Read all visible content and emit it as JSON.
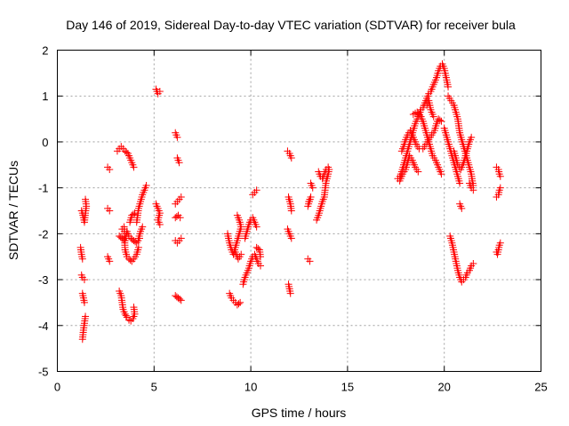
{
  "chart_data": {
    "type": "scatter",
    "title": "Day 146 of 2019, Sidereal Day-to-day VTEC variation (SDTVAR) for receiver bula",
    "xlabel": "GPS time / hours",
    "ylabel": "SDTVAR / TECUs",
    "xlim": [
      0,
      25
    ],
    "ylim": [
      -5,
      2
    ],
    "xticks": [
      0,
      5,
      10,
      15,
      20,
      25
    ],
    "yticks": [
      -5,
      -4,
      -3,
      -2,
      -1,
      0,
      1,
      2
    ],
    "grid": true,
    "marker": "+",
    "color": "#ff0000",
    "segments": [
      [
        [
          1.3,
          -4.3
        ],
        [
          1.35,
          -4.1
        ],
        [
          1.4,
          -3.95
        ],
        [
          1.45,
          -3.8
        ]
      ],
      [
        [
          1.3,
          -3.3
        ],
        [
          1.35,
          -3.4
        ],
        [
          1.4,
          -3.5
        ]
      ],
      [
        [
          1.25,
          -2.9
        ],
        [
          1.3,
          -2.95
        ],
        [
          1.4,
          -3.0
        ]
      ],
      [
        [
          1.2,
          -2.3
        ],
        [
          1.25,
          -2.45
        ],
        [
          1.3,
          -2.55
        ]
      ],
      [
        [
          1.25,
          -1.5
        ],
        [
          1.3,
          -1.55
        ],
        [
          1.35,
          -1.65
        ],
        [
          1.4,
          -1.75
        ],
        [
          1.45,
          -1.55
        ],
        [
          1.5,
          -1.4
        ],
        [
          1.45,
          -1.25
        ]
      ],
      [
        [
          2.6,
          -0.55
        ],
        [
          2.7,
          -0.6
        ]
      ],
      [
        [
          2.6,
          -1.45
        ],
        [
          2.7,
          -1.5
        ]
      ],
      [
        [
          2.6,
          -2.5
        ],
        [
          2.7,
          -2.6
        ]
      ],
      [
        [
          3.1,
          -0.2
        ],
        [
          3.2,
          -0.15
        ],
        [
          3.3,
          -0.1
        ],
        [
          3.4,
          -0.15
        ],
        [
          3.5,
          -0.2
        ],
        [
          3.65,
          -0.25
        ],
        [
          3.75,
          -0.35
        ],
        [
          3.85,
          -0.45
        ],
        [
          3.95,
          -0.55
        ]
      ],
      [
        [
          3.2,
          -2.05
        ],
        [
          3.35,
          -2.1
        ],
        [
          3.5,
          -2.15
        ],
        [
          3.6,
          -1.95
        ],
        [
          3.7,
          -2.05
        ],
        [
          3.8,
          -2.1
        ],
        [
          3.95,
          -2.15
        ],
        [
          4.1,
          -2.2
        ],
        [
          4.25,
          -2.1
        ]
      ],
      [
        [
          3.35,
          -1.9
        ],
        [
          3.45,
          -1.85
        ],
        [
          3.5,
          -2.35
        ],
        [
          3.6,
          -2.5
        ]
      ],
      [
        [
          3.7,
          -2.55
        ],
        [
          3.85,
          -2.6
        ],
        [
          3.95,
          -2.55
        ],
        [
          4.1,
          -2.45
        ],
        [
          4.2,
          -2.3
        ]
      ],
      [
        [
          3.75,
          -1.75
        ],
        [
          3.85,
          -1.6
        ],
        [
          4.0,
          -1.55
        ]
      ],
      [
        [
          3.2,
          -3.25
        ],
        [
          3.3,
          -3.35
        ],
        [
          3.35,
          -3.5
        ],
        [
          3.4,
          -3.65
        ],
        [
          3.5,
          -3.75
        ],
        [
          3.6,
          -3.82
        ],
        [
          3.7,
          -3.88
        ],
        [
          3.8,
          -3.9
        ],
        [
          3.9,
          -3.85
        ],
        [
          4.0,
          -3.75
        ],
        [
          3.95,
          -3.6
        ]
      ],
      [
        [
          4.1,
          -1.75
        ],
        [
          4.15,
          -1.6
        ],
        [
          4.2,
          -1.45
        ],
        [
          4.3,
          -1.3
        ],
        [
          4.4,
          -1.15
        ],
        [
          4.5,
          -1.05
        ],
        [
          4.6,
          -0.95
        ]
      ],
      [
        [
          4.2,
          -2.1
        ],
        [
          4.3,
          -1.95
        ],
        [
          4.4,
          -1.85
        ]
      ],
      [
        [
          5.1,
          1.15
        ],
        [
          5.2,
          1.05
        ],
        [
          5.3,
          1.1
        ]
      ],
      [
        [
          5.1,
          -1.35
        ],
        [
          5.2,
          -1.45
        ],
        [
          5.3,
          -1.55
        ],
        [
          5.2,
          -1.7
        ],
        [
          5.3,
          -1.8
        ]
      ],
      [
        [
          6.1,
          0.2
        ],
        [
          6.2,
          0.1
        ]
      ],
      [
        [
          6.2,
          -0.35
        ],
        [
          6.3,
          -0.45
        ]
      ],
      [
        [
          6.1,
          -1.35
        ],
        [
          6.2,
          -1.3
        ],
        [
          6.3,
          -1.25
        ],
        [
          6.4,
          -1.2
        ]
      ],
      [
        [
          6.1,
          -1.65
        ],
        [
          6.25,
          -1.6
        ],
        [
          6.35,
          -1.65
        ]
      ],
      [
        [
          6.1,
          -2.15
        ],
        [
          6.2,
          -2.2
        ],
        [
          6.3,
          -2.15
        ],
        [
          6.4,
          -2.1
        ]
      ],
      [
        [
          6.1,
          -3.35
        ],
        [
          6.25,
          -3.4
        ],
        [
          6.4,
          -3.45
        ]
      ],
      [
        [
          8.9,
          -3.3
        ],
        [
          9.0,
          -3.4
        ],
        [
          9.1,
          -3.45
        ],
        [
          9.2,
          -3.5
        ],
        [
          9.3,
          -3.55
        ],
        [
          9.45,
          -3.5
        ]
      ],
      [
        [
          8.8,
          -2.0
        ],
        [
          8.9,
          -2.2
        ],
        [
          9.0,
          -2.35
        ],
        [
          9.1,
          -2.45
        ],
        [
          9.2,
          -2.3
        ],
        [
          9.3,
          -2.15
        ],
        [
          9.4,
          -2.0
        ],
        [
          9.5,
          -1.85
        ],
        [
          9.4,
          -1.7
        ],
        [
          9.3,
          -1.6
        ]
      ],
      [
        [
          9.2,
          -2.4
        ],
        [
          9.35,
          -2.55
        ],
        [
          9.5,
          -2.45
        ]
      ],
      [
        [
          9.6,
          -3.1
        ],
        [
          9.7,
          -2.95
        ],
        [
          9.8,
          -2.85
        ],
        [
          9.9,
          -2.75
        ],
        [
          10.0,
          -2.6
        ],
        [
          10.1,
          -2.5
        ],
        [
          10.2,
          -2.45
        ],
        [
          10.3,
          -2.55
        ],
        [
          10.4,
          -2.65
        ],
        [
          10.5,
          -2.7
        ]
      ],
      [
        [
          9.7,
          -2.1
        ],
        [
          9.8,
          -1.95
        ],
        [
          9.9,
          -1.8
        ],
        [
          10.0,
          -1.7
        ],
        [
          10.1,
          -1.65
        ],
        [
          10.2,
          -1.75
        ],
        [
          10.3,
          -1.85
        ]
      ],
      [
        [
          10.3,
          -2.3
        ],
        [
          10.45,
          -2.35
        ],
        [
          10.5,
          -2.5
        ]
      ],
      [
        [
          10.1,
          -1.15
        ],
        [
          10.2,
          -1.1
        ],
        [
          10.3,
          -1.05
        ]
      ],
      [
        [
          11.9,
          -0.2
        ],
        [
          12.0,
          -0.25
        ],
        [
          12.1,
          -0.35
        ]
      ],
      [
        [
          11.95,
          -1.2
        ],
        [
          12.05,
          -1.35
        ],
        [
          12.1,
          -1.5
        ]
      ],
      [
        [
          11.9,
          -1.9
        ],
        [
          12.0,
          -2.0
        ],
        [
          12.1,
          -2.1
        ]
      ],
      [
        [
          11.95,
          -3.1
        ],
        [
          12.0,
          -3.2
        ],
        [
          12.05,
          -3.3
        ]
      ],
      [
        [
          12.95,
          -2.55
        ],
        [
          13.05,
          -2.6
        ]
      ],
      [
        [
          13.0,
          -1.3
        ],
        [
          13.1,
          -1.2
        ],
        [
          12.95,
          -1.4
        ]
      ],
      [
        [
          13.1,
          -0.9
        ],
        [
          13.2,
          -1.0
        ]
      ],
      [
        [
          13.4,
          -1.7
        ],
        [
          13.5,
          -1.6
        ],
        [
          13.6,
          -1.45
        ],
        [
          13.7,
          -1.3
        ],
        [
          13.8,
          -1.2
        ],
        [
          13.85,
          -1.0
        ],
        [
          13.9,
          -0.85
        ],
        [
          14.0,
          -0.7
        ],
        [
          14.05,
          -0.6
        ]
      ],
      [
        [
          13.5,
          -0.65
        ],
        [
          13.6,
          -0.75
        ],
        [
          13.7,
          -0.8
        ],
        [
          13.8,
          -0.7
        ],
        [
          13.9,
          -0.6
        ],
        [
          14.0,
          -0.55
        ]
      ],
      [
        [
          17.6,
          -0.8
        ],
        [
          17.7,
          -0.75
        ],
        [
          17.8,
          -0.65
        ],
        [
          17.9,
          -0.5
        ],
        [
          18.0,
          -0.35
        ],
        [
          18.1,
          -0.2
        ],
        [
          18.2,
          -0.05
        ],
        [
          18.3,
          0.1
        ],
        [
          18.4,
          0.25
        ],
        [
          18.5,
          0.4
        ],
        [
          18.6,
          0.5
        ],
        [
          18.7,
          0.6
        ],
        [
          18.8,
          0.7
        ],
        [
          18.9,
          0.75
        ],
        [
          19.0,
          0.85
        ],
        [
          19.1,
          0.95
        ],
        [
          19.2,
          1.05
        ],
        [
          19.3,
          1.1
        ],
        [
          19.4,
          1.2
        ],
        [
          19.5,
          1.3
        ],
        [
          19.6,
          1.4
        ],
        [
          19.7,
          1.55
        ],
        [
          19.8,
          1.65
        ],
        [
          19.9,
          1.7
        ],
        [
          20.0,
          1.6
        ],
        [
          20.1,
          1.4
        ],
        [
          20.2,
          1.2
        ]
      ],
      [
        [
          17.7,
          -0.85
        ],
        [
          17.85,
          -0.7
        ],
        [
          18.0,
          -0.6
        ],
        [
          18.1,
          -0.45
        ],
        [
          18.2,
          -0.3
        ],
        [
          18.35,
          -0.4
        ],
        [
          18.5,
          -0.55
        ],
        [
          18.65,
          -0.65
        ]
      ],
      [
        [
          17.8,
          -0.2
        ],
        [
          17.9,
          -0.1
        ],
        [
          18.0,
          0.05
        ],
        [
          18.1,
          0.15
        ],
        [
          18.25,
          0.25
        ],
        [
          18.4,
          0.1
        ],
        [
          18.55,
          -0.05
        ],
        [
          18.7,
          -0.15
        ]
      ],
      [
        [
          18.4,
          0.6
        ],
        [
          18.6,
          0.65
        ],
        [
          18.8,
          0.55
        ],
        [
          18.9,
          0.45
        ],
        [
          19.0,
          0.3
        ],
        [
          19.1,
          0.15
        ],
        [
          19.2,
          0.0
        ],
        [
          19.3,
          -0.15
        ],
        [
          19.4,
          -0.3
        ],
        [
          19.55,
          -0.4
        ],
        [
          19.7,
          -0.55
        ],
        [
          19.85,
          -0.7
        ]
      ],
      [
        [
          18.9,
          -0.15
        ],
        [
          19.05,
          -0.05
        ],
        [
          19.2,
          0.05
        ],
        [
          19.35,
          0.15
        ],
        [
          19.5,
          0.25
        ],
        [
          19.6,
          0.4
        ],
        [
          19.7,
          0.5
        ],
        [
          19.85,
          0.45
        ]
      ],
      [
        [
          19.1,
          0.8
        ],
        [
          19.2,
          0.9
        ],
        [
          19.3,
          0.7
        ],
        [
          19.45,
          0.55
        ]
      ],
      [
        [
          20.2,
          1.0
        ],
        [
          20.35,
          0.9
        ],
        [
          20.5,
          0.8
        ],
        [
          20.6,
          0.65
        ],
        [
          20.7,
          0.5
        ],
        [
          20.75,
          0.35
        ],
        [
          20.8,
          0.2
        ],
        [
          20.9,
          0.05
        ],
        [
          21.0,
          -0.1
        ],
        [
          21.1,
          -0.25
        ],
        [
          21.2,
          -0.4
        ],
        [
          21.3,
          -0.55
        ],
        [
          21.4,
          -0.7
        ],
        [
          21.45,
          -0.85
        ],
        [
          21.5,
          -0.95
        ]
      ],
      [
        [
          20.0,
          0.3
        ],
        [
          20.1,
          0.15
        ],
        [
          20.2,
          0.0
        ],
        [
          20.3,
          -0.15
        ],
        [
          20.4,
          -0.3
        ],
        [
          20.5,
          -0.45
        ],
        [
          20.6,
          -0.6
        ],
        [
          20.7,
          -0.75
        ],
        [
          20.8,
          -0.9
        ]
      ],
      [
        [
          20.5,
          -0.2
        ],
        [
          20.6,
          -0.35
        ],
        [
          20.7,
          -0.5
        ],
        [
          20.85,
          -0.6
        ],
        [
          21.0,
          -0.45
        ],
        [
          21.1,
          -0.3
        ],
        [
          21.2,
          -0.15
        ],
        [
          21.3,
          0.0
        ],
        [
          21.4,
          0.1
        ]
      ],
      [
        [
          20.3,
          -2.05
        ],
        [
          20.4,
          -2.2
        ],
        [
          20.5,
          -2.4
        ],
        [
          20.6,
          -2.6
        ],
        [
          20.7,
          -2.8
        ],
        [
          20.8,
          -2.95
        ],
        [
          20.9,
          -3.05
        ],
        [
          21.0,
          -3.0
        ],
        [
          21.1,
          -2.95
        ],
        [
          21.2,
          -2.85
        ],
        [
          21.3,
          -2.8
        ],
        [
          21.4,
          -2.7
        ],
        [
          21.5,
          -2.65
        ]
      ],
      [
        [
          20.8,
          -1.35
        ],
        [
          20.9,
          -1.45
        ]
      ],
      [
        [
          21.3,
          -0.9
        ],
        [
          21.4,
          -1.0
        ],
        [
          21.5,
          -1.05
        ]
      ],
      [
        [
          22.7,
          -0.55
        ],
        [
          22.8,
          -0.6
        ],
        [
          22.85,
          -0.7
        ],
        [
          22.9,
          -0.75
        ]
      ],
      [
        [
          22.7,
          -1.2
        ],
        [
          22.8,
          -1.15
        ],
        [
          22.85,
          -1.05
        ],
        [
          22.9,
          -1.0
        ]
      ],
      [
        [
          22.7,
          -2.4
        ],
        [
          22.75,
          -2.45
        ],
        [
          22.8,
          -2.35
        ],
        [
          22.85,
          -2.25
        ],
        [
          22.9,
          -2.2
        ]
      ]
    ]
  }
}
